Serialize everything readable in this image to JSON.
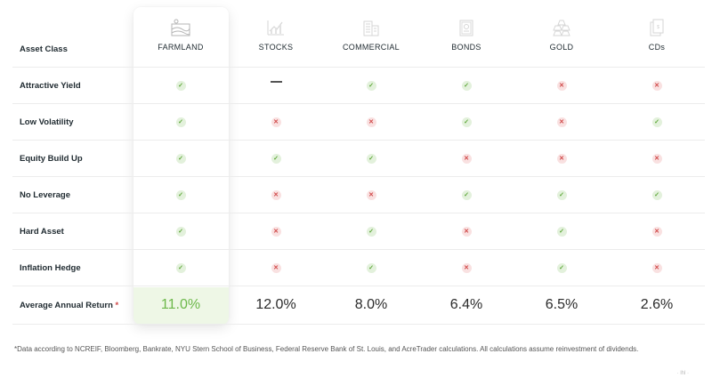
{
  "header": {
    "row_label": "Asset Class",
    "columns": [
      {
        "label": "FARMLAND",
        "icon": "farm-icon"
      },
      {
        "label": "STOCKS",
        "icon": "stock-chart-icon"
      },
      {
        "label": "COMMERCIAL",
        "icon": "building-icon"
      },
      {
        "label": "BONDS",
        "icon": "certificate-icon"
      },
      {
        "label": "GOLD",
        "icon": "gold-bars-icon"
      },
      {
        "label": "CDs",
        "icon": "cd-document-icon"
      }
    ]
  },
  "rows": [
    {
      "label": "Attractive Yield",
      "values": [
        "yes",
        "na",
        "yes",
        "yes",
        "no",
        "no"
      ]
    },
    {
      "label": "Low Volatility",
      "values": [
        "yes",
        "no",
        "no",
        "yes",
        "no",
        "yes"
      ]
    },
    {
      "label": "Equity Build Up",
      "values": [
        "yes",
        "yes",
        "yes",
        "no",
        "no",
        "no"
      ]
    },
    {
      "label": "No Leverage",
      "values": [
        "yes",
        "no",
        "no",
        "yes",
        "yes",
        "yes"
      ]
    },
    {
      "label": "Hard Asset",
      "values": [
        "yes",
        "no",
        "yes",
        "no",
        "yes",
        "no"
      ]
    },
    {
      "label": "Inflation Hedge",
      "values": [
        "yes",
        "no",
        "yes",
        "no",
        "yes",
        "no"
      ]
    }
  ],
  "returns": {
    "label": "Average Annual Return",
    "asterisk": "*",
    "values": [
      "11.0%",
      "12.0%",
      "8.0%",
      "6.4%",
      "6.5%",
      "2.6%"
    ]
  },
  "footnote": "*Data according to NCREIF, Bloomberg, Bankrate, NYU Stern School of Business, Federal Reserve Bank of St. Louis, and AcreTrader calculations. All calculations assume reinvestment of dividends.",
  "colors": {
    "check": "#5fa83a",
    "check_bg": "#e3f1dc",
    "cross": "#d04848",
    "cross_bg": "#f9e1e1",
    "highlight_return": "#6cb84a"
  }
}
